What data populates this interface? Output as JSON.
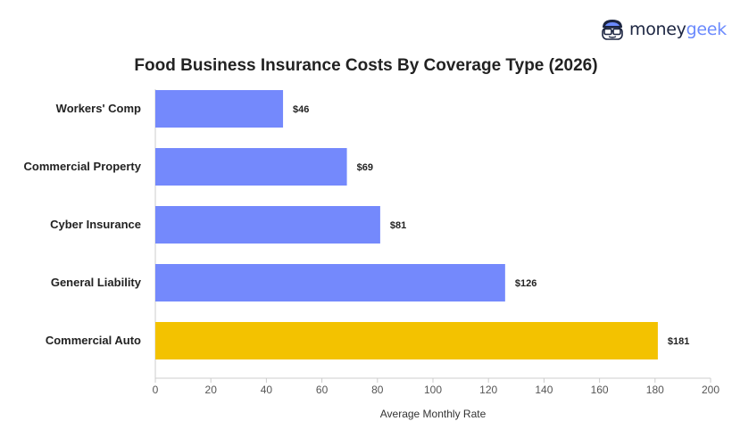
{
  "brand": {
    "name_part1": "money",
    "name_part2": "geek",
    "icon": "moneygeek-mascot-icon",
    "colors": {
      "dark": "#1c2541",
      "accent": "#6b8afd"
    }
  },
  "chart_data": {
    "type": "bar",
    "orientation": "horizontal",
    "title": "Food Business Insurance Costs By Coverage Type (2026)",
    "xlabel": "Average Monthly Rate",
    "ylabel": "",
    "categories": [
      "Workers' Comp",
      "Commercial Property",
      "Cyber Insurance",
      "General Liability",
      "Commercial Auto"
    ],
    "values": [
      46,
      69,
      81,
      126,
      181
    ],
    "value_labels": [
      "$46",
      "$69",
      "$81",
      "$126",
      "$181"
    ],
    "xlim": [
      0,
      200
    ],
    "xticks": [
      0,
      20,
      40,
      60,
      80,
      100,
      120,
      140,
      160,
      180,
      200
    ],
    "grid": false,
    "colors": {
      "default": "#7489fc",
      "highlight": "#f3c200",
      "highlight_category": "Commercial Auto"
    }
  }
}
